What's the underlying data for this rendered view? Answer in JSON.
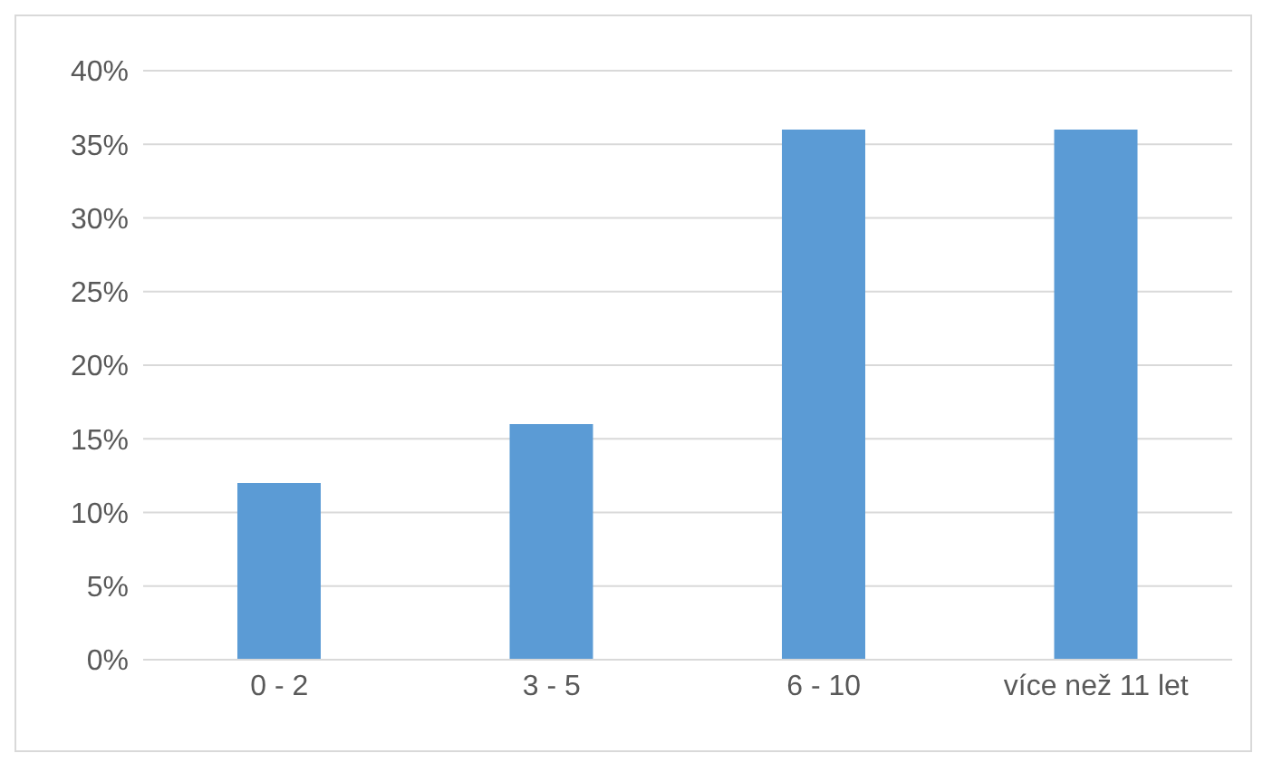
{
  "chart_data": {
    "type": "bar",
    "categories": [
      "0 - 2",
      "3 - 5",
      "6 - 10",
      "více než 11 let"
    ],
    "values": [
      12,
      16,
      36,
      36
    ],
    "color": "#5b9bd5",
    "ylim": [
      0,
      40
    ],
    "yticks": [
      {
        "value": 0,
        "label": "0%"
      },
      {
        "value": 5,
        "label": "5%"
      },
      {
        "value": 10,
        "label": "10%"
      },
      {
        "value": 15,
        "label": "15%"
      },
      {
        "value": 20,
        "label": "20%"
      },
      {
        "value": 25,
        "label": "25%"
      },
      {
        "value": 30,
        "label": "30%"
      },
      {
        "value": 35,
        "label": "35%"
      },
      {
        "value": 40,
        "label": "40%"
      }
    ],
    "grid": "y",
    "legend": false
  }
}
